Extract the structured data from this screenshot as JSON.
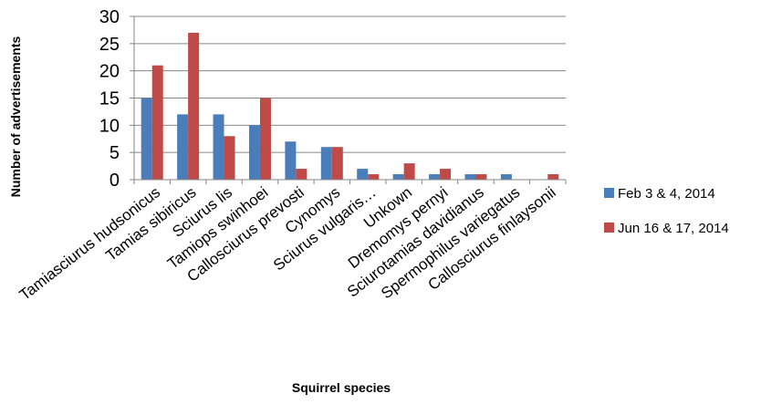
{
  "chart_data": {
    "type": "bar",
    "title": "",
    "xlabel": "Squirrel species",
    "ylabel": "Number of advertisements",
    "ylim": [
      0,
      30
    ],
    "yticks": [
      0,
      5,
      10,
      15,
      20,
      25,
      30
    ],
    "grid": "horizontal",
    "legend_position": "right",
    "categories": [
      "Tamiasciurus hudsonicus",
      "Tamias sibiricus",
      "Sciurus lis",
      "Tamiops swinhoei",
      "Callosciurus prevosti",
      "Cynomys",
      "Sciurus vulgaris…",
      "Unkown",
      "Dremomys pernyi",
      "Sciurotamias davidianus",
      "Spermophilus variegatus",
      "Callosciurus finlaysonii"
    ],
    "series": [
      {
        "name": "Feb 3 & 4, 2014",
        "color": "#4a7ebb",
        "values": [
          15,
          12,
          12,
          10,
          7,
          6,
          2,
          1,
          1,
          1,
          1,
          0
        ]
      },
      {
        "name": "Jun 16 & 17, 2014",
        "color": "#be4b48",
        "values": [
          21,
          27,
          8,
          15,
          2,
          6,
          1,
          3,
          2,
          1,
          0,
          1
        ]
      }
    ]
  }
}
